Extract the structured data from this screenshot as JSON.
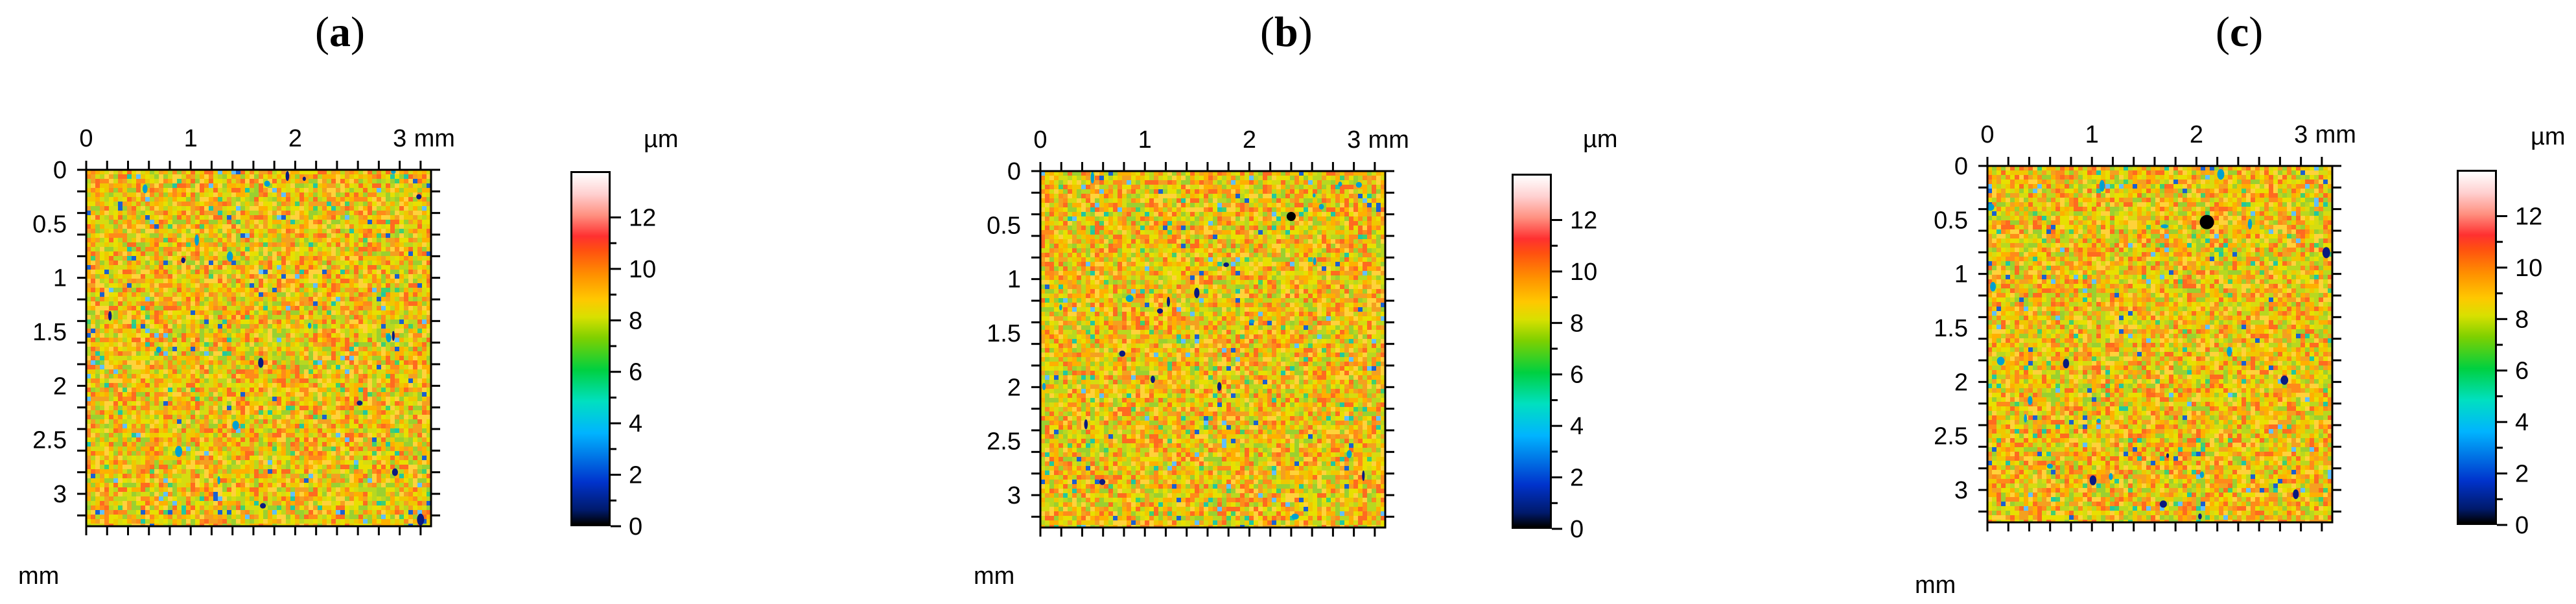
{
  "panels": [
    {
      "label": "a",
      "x_unit": "mm",
      "y_unit": "mm",
      "cb_unit": "µm",
      "x_ticks": [
        "0",
        "1",
        "2",
        "3"
      ],
      "y_ticks": [
        "0",
        "0.5",
        "1",
        "1.5",
        "2",
        "2.5",
        "3"
      ],
      "cb_ticks": [
        "0",
        "2",
        "4",
        "6",
        "8",
        "10",
        "12"
      ],
      "defect": null
    },
    {
      "label": "b",
      "x_unit": "mm",
      "y_unit": "mm",
      "cb_unit": "µm",
      "x_ticks": [
        "0",
        "1",
        "2",
        "3"
      ],
      "y_ticks": [
        "0",
        "0.5",
        "1",
        "1.5",
        "2",
        "2.5",
        "3"
      ],
      "cb_ticks": [
        "0",
        "2",
        "4",
        "6",
        "8",
        "10",
        "12"
      ],
      "defect": {
        "x_mm": 2.4,
        "y_mm": 0.42,
        "size": "small"
      }
    },
    {
      "label": "c",
      "x_unit": "mm",
      "y_unit": "mm",
      "cb_unit": "µm",
      "x_ticks": [
        "0",
        "1",
        "2",
        "3"
      ],
      "y_ticks": [
        "0",
        "0.5",
        "1",
        "1.5",
        "2",
        "2.5",
        "3"
      ],
      "cb_ticks": [
        "0",
        "2",
        "4",
        "6",
        "8",
        "10",
        "12"
      ],
      "defect": {
        "x_mm": 2.1,
        "y_mm": 0.52,
        "size": "large"
      }
    }
  ],
  "colors": {
    "background": "#ffffff",
    "axis": "#000000"
  }
}
